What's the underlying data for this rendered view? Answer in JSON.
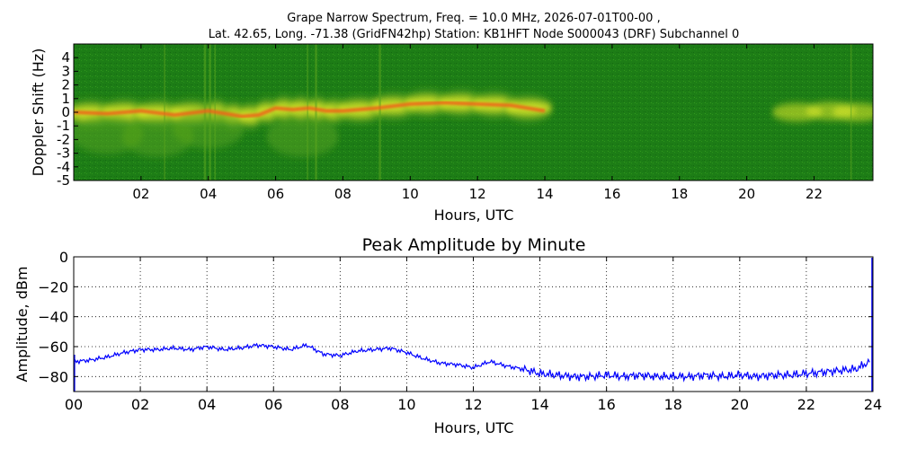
{
  "chart_data": [
    {
      "type": "heatmap",
      "title_lines": [
        "Grape Narrow Spectrum, Freq. = 10.0 MHz, 2026-07-01T00-00 ,",
        "Lat.  42.65, Long. -71.38 (GridFN42hp) Station: KB1HFT Node S000043 (DRF) Subchannel 0"
      ],
      "xlabel": "Hours, UTC",
      "ylabel": "Doppler Shift (Hz)",
      "xlim": [
        0,
        23.75
      ],
      "ylim": [
        -5,
        5
      ],
      "x_ticks": [
        2,
        4,
        6,
        8,
        10,
        12,
        14,
        16,
        18,
        20,
        22
      ],
      "x_tick_labels": [
        "02",
        "04",
        "06",
        "08",
        "10",
        "12",
        "14",
        "16",
        "18",
        "20",
        "22"
      ],
      "y_ticks": [
        -5,
        -4,
        -3,
        -2,
        -1,
        0,
        1,
        2,
        3,
        4
      ],
      "y_tick_labels": [
        "-5",
        "-4",
        "-3",
        "-2",
        "-1",
        "0",
        "1",
        "2",
        "3",
        "4"
      ],
      "colors": {
        "background": "#1d7d16",
        "mid": "#5aa51e",
        "signal": "#e8ee2a",
        "peak": "#f06018"
      },
      "doppler_trace": [
        {
          "x": 0.0,
          "y": 0.0
        },
        {
          "x": 1.0,
          "y": -0.1
        },
        {
          "x": 2.0,
          "y": 0.1
        },
        {
          "x": 3.0,
          "y": -0.2
        },
        {
          "x": 4.0,
          "y": 0.1
        },
        {
          "x": 4.5,
          "y": -0.1
        },
        {
          "x": 5.0,
          "y": -0.3
        },
        {
          "x": 5.5,
          "y": -0.2
        },
        {
          "x": 6.0,
          "y": 0.3
        },
        {
          "x": 6.5,
          "y": 0.2
        },
        {
          "x": 7.0,
          "y": 0.3
        },
        {
          "x": 7.5,
          "y": 0.1
        },
        {
          "x": 8.0,
          "y": 0.1
        },
        {
          "x": 9.0,
          "y": 0.3
        },
        {
          "x": 10.0,
          "y": 0.6
        },
        {
          "x": 11.0,
          "y": 0.7
        },
        {
          "x": 12.0,
          "y": 0.6
        },
        {
          "x": 13.0,
          "y": 0.5
        },
        {
          "x": 14.0,
          "y": 0.1
        }
      ]
    },
    {
      "type": "line",
      "title": "Peak Amplitude by Minute",
      "xlabel": "Hours, UTC",
      "ylabel": "Amplitude, dBm",
      "xlim": [
        0,
        24
      ],
      "ylim": [
        -90,
        0
      ],
      "x_ticks": [
        0,
        2,
        4,
        6,
        8,
        10,
        12,
        14,
        16,
        18,
        20,
        22,
        24
      ],
      "x_tick_labels": [
        "00",
        "02",
        "04",
        "06",
        "08",
        "10",
        "12",
        "14",
        "16",
        "18",
        "20",
        "22",
        "24"
      ],
      "y_ticks": [
        0,
        -20,
        -40,
        -60,
        -80
      ],
      "y_tick_labels": [
        "0",
        "−20",
        "−40",
        "−60",
        "−80"
      ],
      "grid": true,
      "line_color": "#0000ff",
      "series": [
        {
          "x": [
            0,
            0.5,
            1,
            1.5,
            2,
            2.5,
            3,
            3.5,
            4,
            4.5,
            5,
            5.5,
            6,
            6.5,
            7,
            7.5,
            8,
            8.5,
            9,
            9.5,
            10,
            10.5,
            11,
            11.5,
            12,
            12.5,
            13,
            13.5,
            14,
            14.5,
            15,
            15.5,
            16,
            16.5,
            17,
            17.5,
            18,
            18.5,
            19,
            19.5,
            20,
            20.5,
            21,
            21.5,
            22,
            22.5,
            23,
            23.5,
            23.9
          ],
          "values": [
            -70,
            -69,
            -67,
            -64,
            -62,
            -62,
            -61,
            -62,
            -60,
            -62,
            -61,
            -59,
            -60,
            -62,
            -59,
            -65,
            -66,
            -63,
            -62,
            -61,
            -64,
            -68,
            -71,
            -72,
            -74,
            -70,
            -73,
            -75,
            -78,
            -79,
            -80,
            -80,
            -79,
            -80,
            -79,
            -80,
            -80,
            -80,
            -79,
            -80,
            -79,
            -80,
            -79,
            -79,
            -78,
            -77,
            -76,
            -75,
            -70
          ]
        }
      ]
    }
  ]
}
